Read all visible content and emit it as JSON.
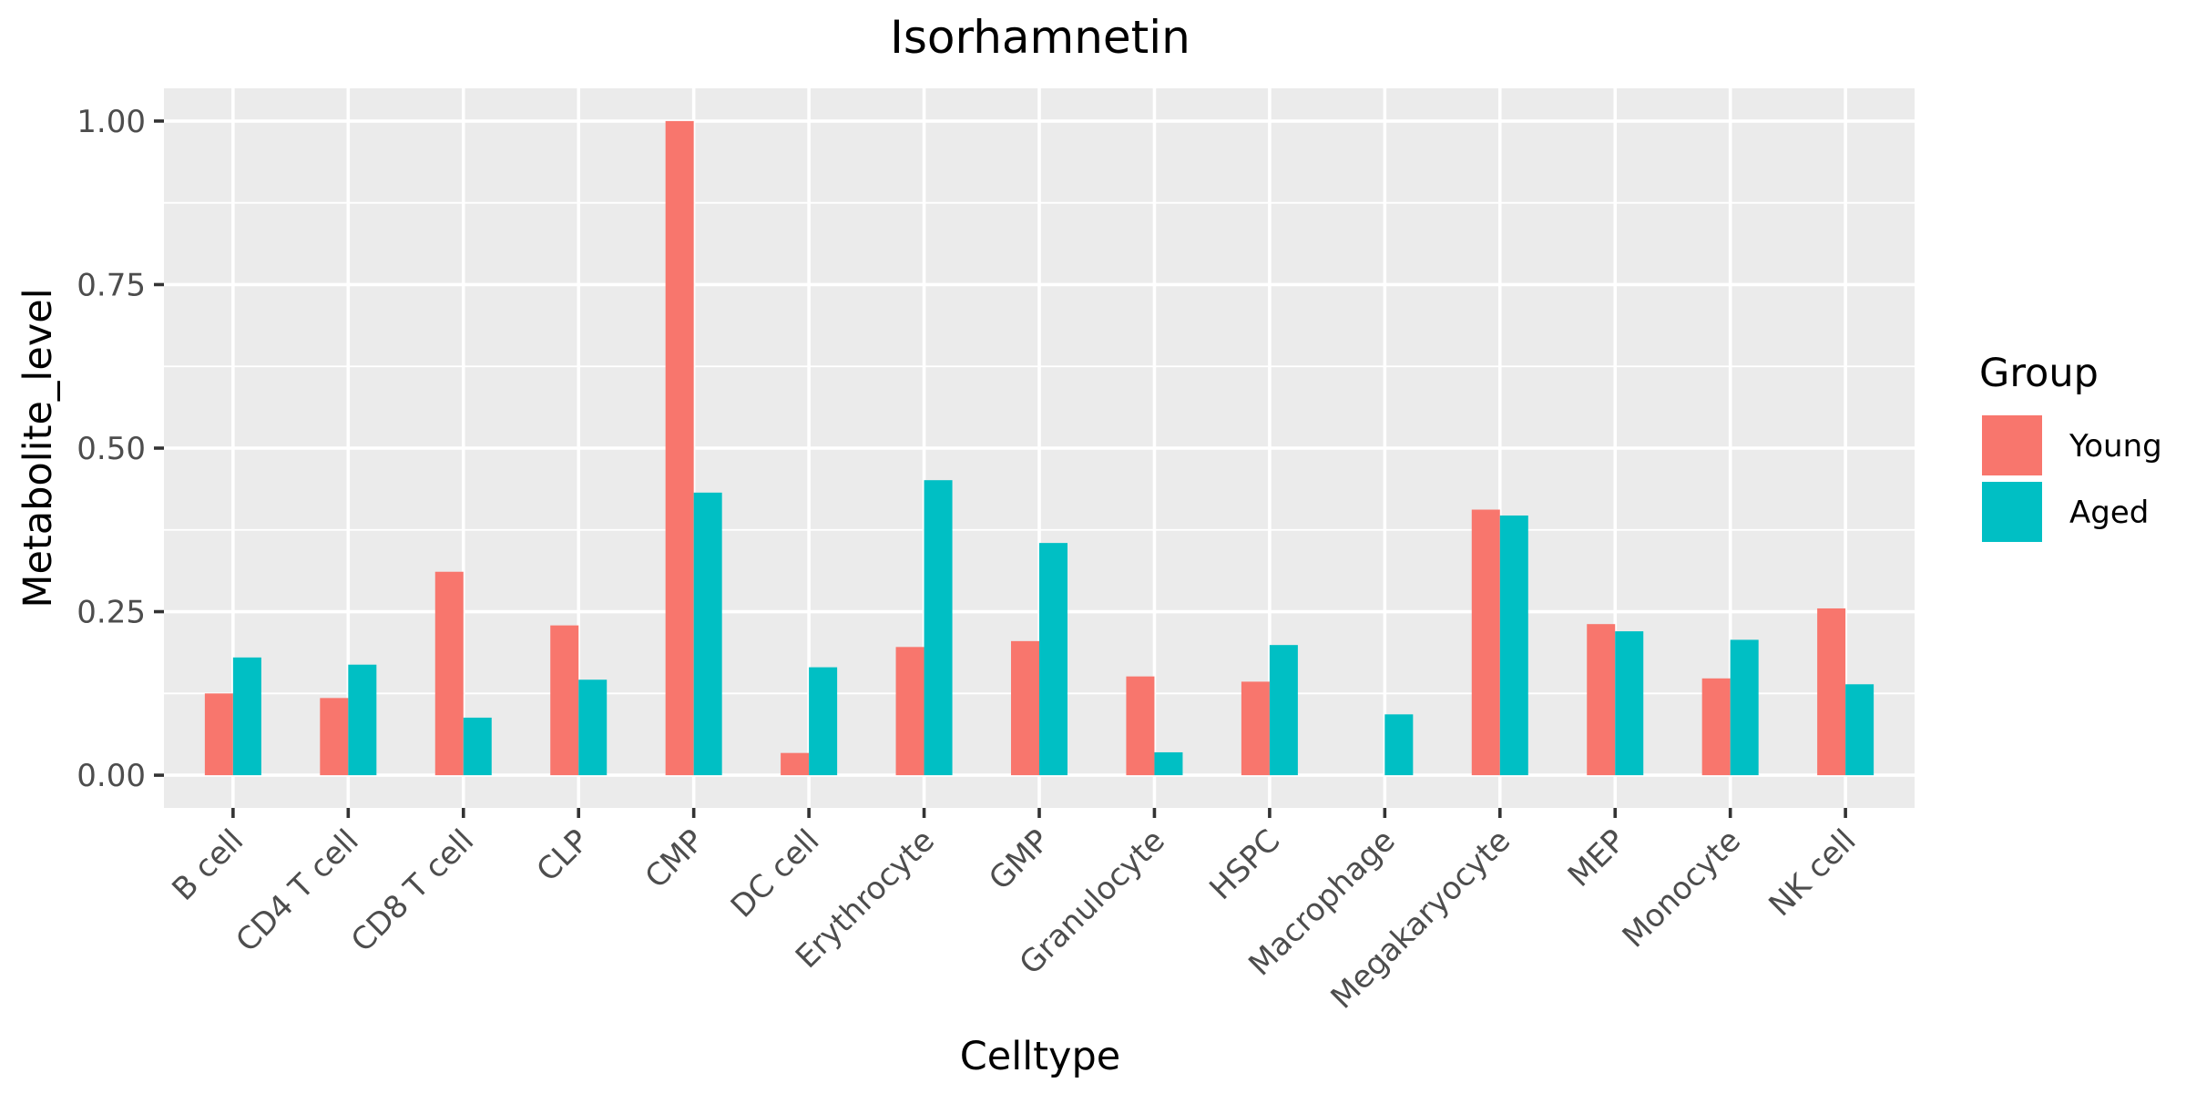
{
  "chart_data": {
    "type": "bar",
    "title": "Isorhamnetin",
    "xlabel": "Celltype",
    "ylabel": "Metabolite_level",
    "ylim": [
      -0.05,
      1.05
    ],
    "yticks": [
      0.0,
      0.25,
      0.5,
      0.75,
      1.0
    ],
    "ytick_labels": [
      "0.00",
      "0.25",
      "0.50",
      "0.75",
      "1.00"
    ],
    "grid": true,
    "legend_position": "right",
    "legend_title": "Group",
    "categories": [
      "B cell",
      "CD4 T cell",
      "CD8 T cell",
      "CLP",
      "CMP",
      "DC cell",
      "Erythrocyte",
      "GMP",
      "Granulocyte",
      "HSPC",
      "Macrophage",
      "Megakaryocyte",
      "MEP",
      "Monocyte",
      "NK cell"
    ],
    "series": [
      {
        "name": "Young",
        "color": "#F8766D",
        "values": [
          0.125,
          0.118,
          0.311,
          0.229,
          1.0,
          0.034,
          0.196,
          0.205,
          0.151,
          0.143,
          0.0,
          0.406,
          0.231,
          0.148,
          0.255
        ]
      },
      {
        "name": "Aged",
        "color": "#00BFC4",
        "values": [
          0.18,
          0.169,
          0.088,
          0.146,
          0.432,
          0.165,
          0.451,
          0.355,
          0.035,
          0.199,
          0.093,
          0.397,
          0.22,
          0.207,
          0.139
        ]
      }
    ],
    "colors": {
      "panel_background": "#EBEBEB",
      "grid": "#FFFFFF",
      "tick_text": "#4D4D4D"
    }
  }
}
